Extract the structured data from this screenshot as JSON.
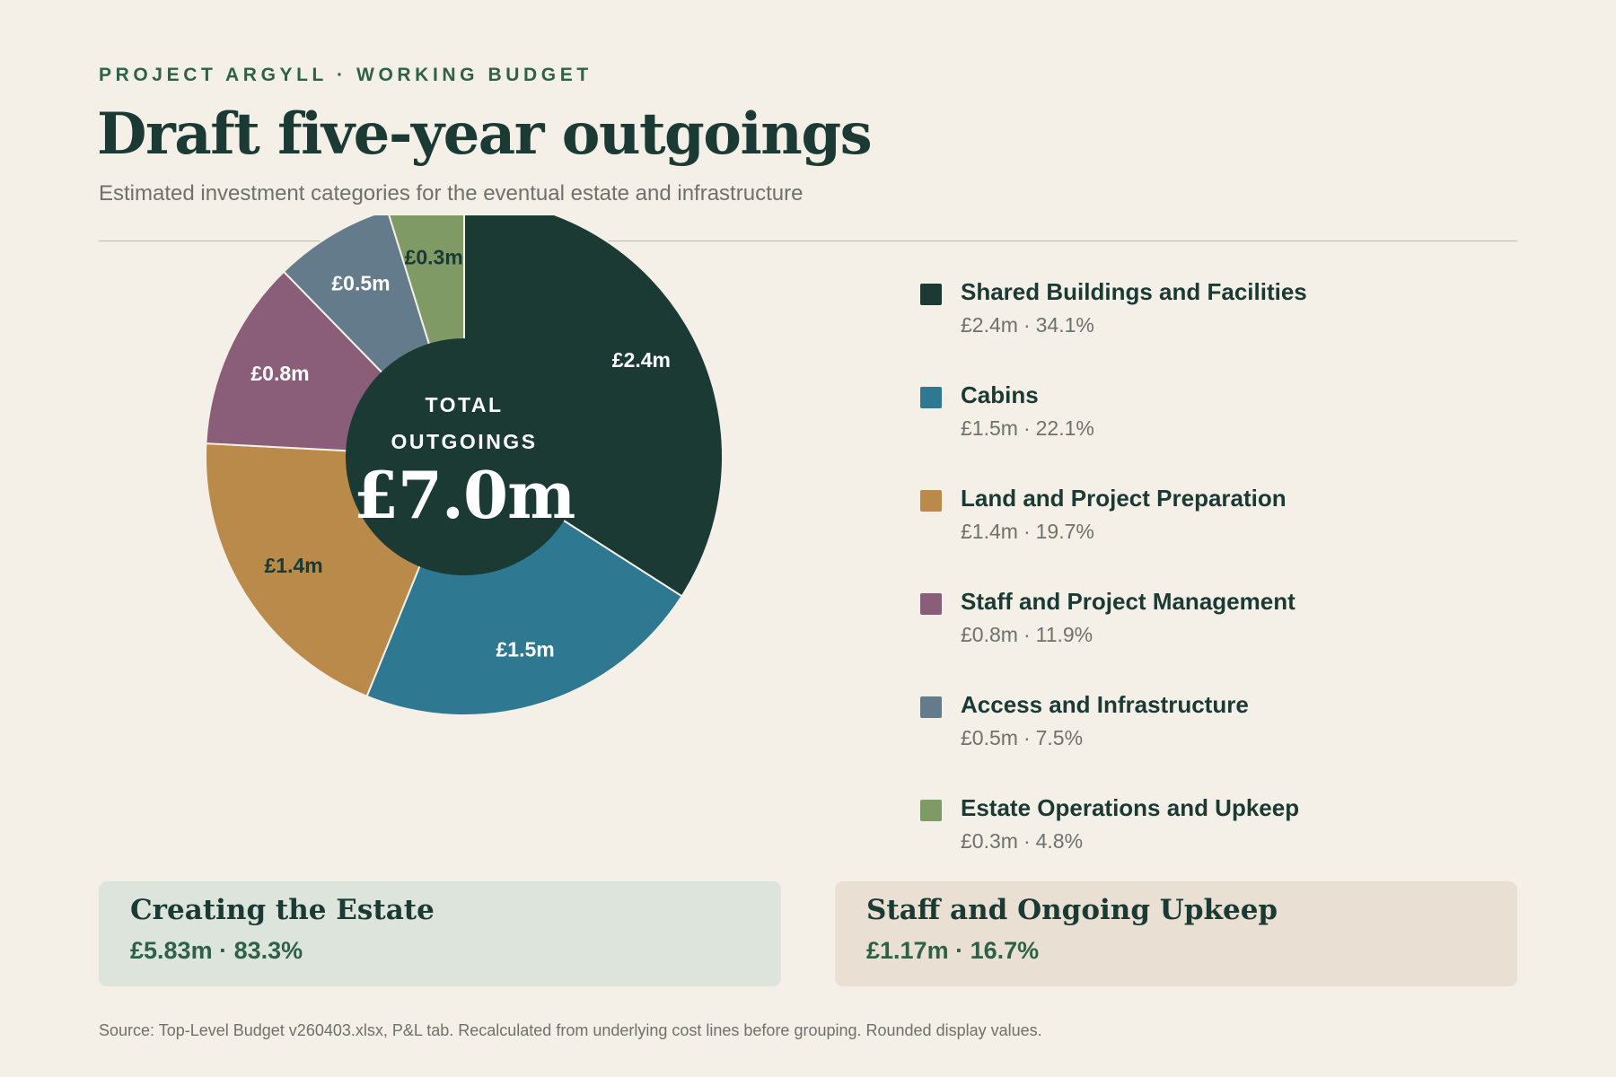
{
  "header": {
    "eyebrow": "PROJECT ARGYLL · WORKING BUDGET",
    "title": "Draft five-year outgoings",
    "subtitle": "Estimated investment categories for the eventual estate and infrastructure"
  },
  "chart_data": {
    "type": "pie",
    "donut": true,
    "start_angle_deg": 0,
    "direction": "clockwise",
    "center": {
      "caption_line1": "TOTAL",
      "caption_line2": "OUTGOINGS",
      "total_label": "£7.0m"
    },
    "slices": [
      {
        "name": "Shared Buildings and Facilities",
        "value": 2.4,
        "label": "£2.4m",
        "value_text": "£2.4m",
        "percent_text": "34.1%",
        "percent": 34.1,
        "color": "#1a3a33",
        "label_color": "#ffffff"
      },
      {
        "name": "Cabins",
        "value": 1.5,
        "label": "£1.5m",
        "value_text": "£1.5m",
        "percent_text": "22.1%",
        "percent": 22.1,
        "color": "#2e7891",
        "label_color": "#ffffff"
      },
      {
        "name": "Land and Project Preparation",
        "value": 1.4,
        "label": "£1.4m",
        "value_text": "£1.4m",
        "percent_text": "19.7%",
        "percent": 19.7,
        "color": "#b98a49",
        "label_color": "#1a3a33"
      },
      {
        "name": "Staff and Project Management",
        "value": 0.8,
        "label": "£0.8m",
        "value_text": "£0.8m",
        "percent_text": "11.9%",
        "percent": 11.9,
        "color": "#8a5e78",
        "label_color": "#ffffff"
      },
      {
        "name": "Access and Infrastructure",
        "value": 0.5,
        "label": "£0.5m",
        "value_text": "£0.5m",
        "percent_text": "7.5%",
        "percent": 7.5,
        "color": "#637b8a",
        "label_color": "#ffffff"
      },
      {
        "name": "Estate Operations and Upkeep",
        "value": 0.3,
        "label": "£0.3m",
        "value_text": "£0.3m",
        "percent_text": "4.8%",
        "percent": 4.8,
        "color": "#7f9a64",
        "label_color": "#1a3a33"
      }
    ],
    "legend_position": "right"
  },
  "groups": [
    {
      "name": "Creating the Estate",
      "value": "£5.83m · 83.3%"
    },
    {
      "name": "Staff and Ongoing Upkeep",
      "value": "£1.17m · 16.7%"
    }
  ],
  "footer": {
    "source": "Source: Top-Level Budget v260403.xlsx, P&L tab. Recalculated from underlying cost lines before grouping. Rounded display values."
  }
}
